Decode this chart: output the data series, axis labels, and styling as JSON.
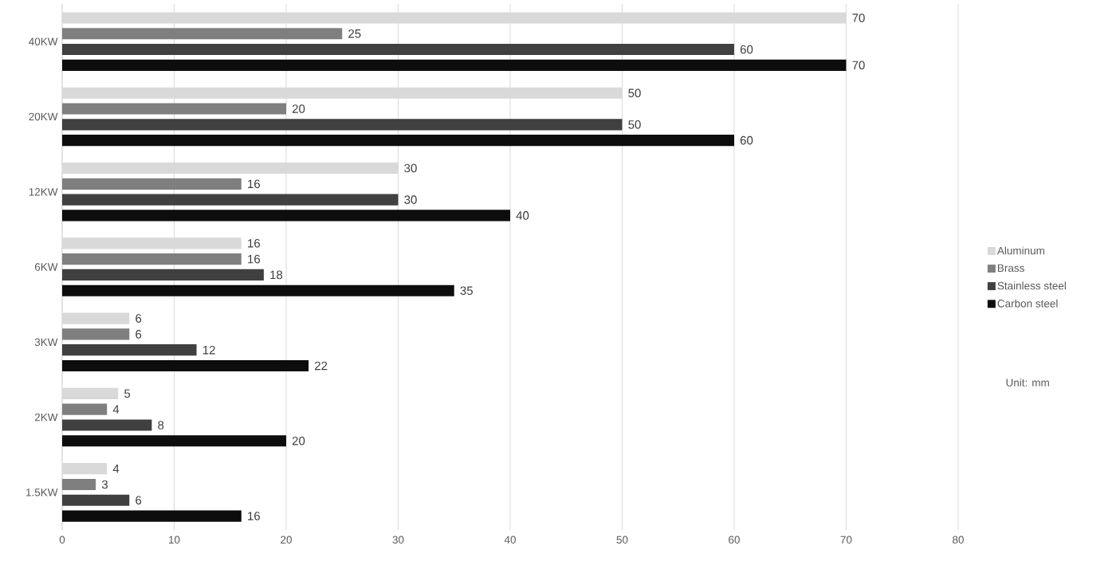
{
  "chart_data": {
    "type": "bar",
    "orientation": "horizontal",
    "categories": [
      "40KW",
      "20KW",
      "12KW",
      "6KW",
      "3KW",
      "2KW",
      "1.5KW"
    ],
    "series": [
      {
        "name": "Aluminum",
        "color": "#d9d9d9",
        "values": [
          70,
          50,
          30,
          16,
          6,
          5,
          4
        ]
      },
      {
        "name": "Brass",
        "color": "#7f7f7f",
        "values": [
          25,
          20,
          16,
          16,
          6,
          4,
          3
        ]
      },
      {
        "name": "Stainless steel",
        "color": "#404040",
        "values": [
          60,
          50,
          30,
          18,
          12,
          8,
          6
        ]
      },
      {
        "name": "Carbon steel",
        "color": "#0d0d0d",
        "values": [
          70,
          60,
          40,
          35,
          22,
          20,
          16
        ]
      }
    ],
    "xlim": [
      0,
      80
    ],
    "xticks": [
      0,
      10,
      20,
      30,
      40,
      50,
      60,
      70,
      80
    ],
    "grid": "x",
    "legend": "right",
    "data_labels": true,
    "annotations": [
      "Unit: mm"
    ]
  }
}
